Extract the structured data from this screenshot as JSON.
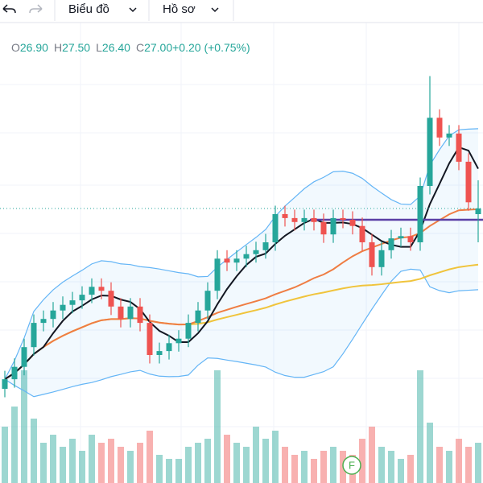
{
  "toolbar": {
    "chart_menu": "Biểu đồ",
    "profile_menu": "Hồ sơ"
  },
  "legend": [
    {
      "label": "O",
      "value": "26.90"
    },
    {
      "label": "H",
      "value": "27.50"
    },
    {
      "label": "L",
      "value": "26.40"
    },
    {
      "label": "C",
      "value": "27.00"
    },
    {
      "label": "",
      "value": "+0.20 (+0.75%)"
    }
  ],
  "chart_data": {
    "type": "candlestick",
    "open": [
      23.8,
      23.97,
      24.19,
      24.54,
      24.97,
      25.04,
      25.19,
      25.29,
      25.37,
      25.47,
      25.61,
      25.54,
      25.26,
      25.04,
      25.26,
      24.97,
      24.4,
      24.47,
      24.61,
      24.69,
      24.97,
      25.19,
      25.54,
      26.11,
      26.04,
      26.11,
      26.19,
      26.26,
      26.4,
      26.9,
      26.83,
      26.76,
      26.83,
      26.76,
      26.54,
      26.83,
      26.8,
      26.69,
      26.4,
      25.96,
      26.26,
      26.47,
      26.51,
      26.4,
      27.4,
      28.61,
      28.26,
      28.33,
      27.83,
      26.9
    ],
    "high": [
      24.12,
      24.34,
      24.69,
      25.12,
      25.19,
      25.34,
      25.44,
      25.52,
      25.62,
      25.76,
      25.76,
      25.69,
      25.41,
      25.41,
      25.41,
      25.12,
      24.62,
      24.76,
      24.84,
      25.12,
      25.34,
      25.69,
      26.26,
      26.26,
      26.26,
      26.34,
      26.41,
      26.55,
      27.05,
      27.05,
      26.98,
      26.98,
      26.98,
      26.91,
      26.98,
      26.98,
      26.95,
      26.84,
      26.55,
      26.41,
      26.62,
      26.66,
      26.66,
      27.55,
      29.35,
      28.76,
      28.48,
      28.48,
      27.98,
      27.5
    ],
    "low": [
      23.65,
      23.82,
      24.04,
      24.39,
      24.82,
      24.89,
      25.04,
      25.14,
      25.22,
      25.32,
      25.39,
      25.11,
      24.89,
      24.89,
      24.82,
      24.25,
      24.25,
      24.32,
      24.46,
      24.54,
      24.82,
      25.04,
      25.39,
      25.89,
      25.89,
      25.96,
      26.04,
      26.11,
      26.25,
      26.68,
      26.61,
      26.61,
      26.61,
      26.39,
      26.39,
      26.65,
      26.54,
      26.25,
      25.81,
      25.81,
      26.11,
      26.32,
      26.25,
      26.25,
      27.25,
      28.11,
      28.11,
      27.68,
      26.96,
      26.4
    ],
    "close": [
      23.97,
      24.19,
      24.54,
      24.97,
      25.04,
      25.19,
      25.29,
      25.37,
      25.47,
      25.61,
      25.54,
      25.26,
      25.04,
      25.26,
      24.97,
      24.4,
      24.47,
      24.61,
      24.69,
      24.97,
      25.19,
      25.54,
      26.11,
      26.04,
      26.11,
      26.19,
      26.26,
      26.4,
      26.9,
      26.83,
      26.76,
      26.83,
      26.76,
      26.54,
      26.83,
      26.8,
      26.69,
      26.4,
      25.96,
      26.26,
      26.47,
      26.51,
      26.4,
      27.4,
      28.61,
      28.26,
      28.33,
      27.83,
      27.11,
      27.0
    ],
    "volume": [
      70,
      95,
      140,
      80,
      50,
      60,
      45,
      55,
      40,
      60,
      50,
      55,
      45,
      40,
      50,
      65,
      35,
      30,
      30,
      45,
      50,
      55,
      140,
      60,
      50,
      45,
      70,
      55,
      65,
      45,
      35,
      40,
      30,
      40,
      45,
      40,
      35,
      55,
      70,
      45,
      40,
      30,
      35,
      140,
      75,
      45,
      40,
      55,
      45,
      50
    ],
    "ylim": [
      23.2,
      29.7
    ],
    "volume_lim": [
      0,
      150
    ],
    "level": 26.8,
    "up_color": "#26a69a",
    "down_color": "#ef5350",
    "marker": "F"
  }
}
